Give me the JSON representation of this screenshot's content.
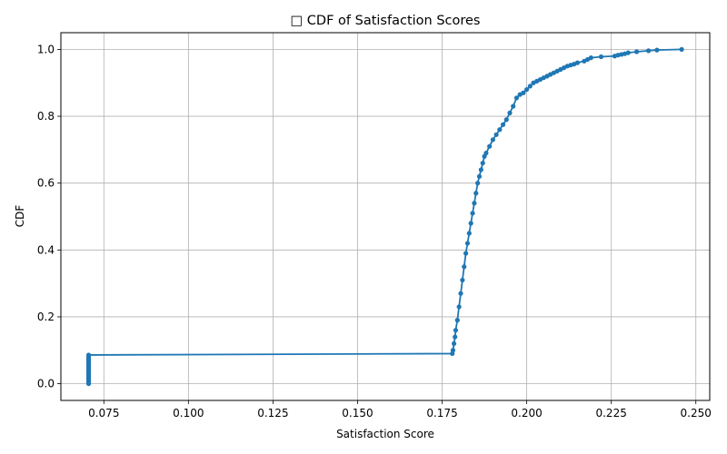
{
  "chart_data": {
    "type": "line",
    "title": "□ CDF of Satisfaction Scores",
    "xlabel": "Satisfaction Score",
    "ylabel": "CDF",
    "xlim": [
      0.0623,
      0.2541
    ],
    "ylim": [
      -0.05,
      1.05
    ],
    "grid": true,
    "line_color": "#1f77b4",
    "x_ticks": [
      0.075,
      0.1,
      0.125,
      0.15,
      0.175,
      0.2,
      0.225,
      0.25
    ],
    "x_tick_labels": [
      "0.075",
      "0.100",
      "0.125",
      "0.150",
      "0.175",
      "0.200",
      "0.225",
      "0.250"
    ],
    "y_ticks": [
      0.0,
      0.2,
      0.4,
      0.6,
      0.8,
      1.0
    ],
    "y_tick_labels": [
      "0.0",
      "0.2",
      "0.4",
      "0.6",
      "0.8",
      "1.0"
    ],
    "series": [
      {
        "x": [
          0.0705,
          0.0705,
          0.0705,
          0.0705,
          0.0705,
          0.0705,
          0.0705,
          0.0705,
          0.0705,
          0.0705,
          0.0705,
          0.0705,
          0.0705,
          0.0705,
          0.0705,
          0.0705,
          0.0705,
          0.0705,
          0.178,
          0.1782,
          0.1785,
          0.1788,
          0.179,
          0.1795,
          0.18,
          0.1805,
          0.181,
          0.1815,
          0.182,
          0.1825,
          0.183,
          0.1835,
          0.184,
          0.1845,
          0.185,
          0.1855,
          0.186,
          0.1865,
          0.187,
          0.1875,
          0.188,
          0.189,
          0.19,
          0.191,
          0.192,
          0.193,
          0.194,
          0.195,
          0.196,
          0.197,
          0.198,
          0.199,
          0.2,
          0.201,
          0.202,
          0.203,
          0.204,
          0.205,
          0.206,
          0.207,
          0.208,
          0.209,
          0.21,
          0.211,
          0.212,
          0.213,
          0.214,
          0.215,
          0.217,
          0.218,
          0.219,
          0.222,
          0.226,
          0.227,
          0.228,
          0.229,
          0.23,
          0.2325,
          0.236,
          0.2385,
          0.2458
        ],
        "y": [
          0.0,
          0.005,
          0.01,
          0.015,
          0.02,
          0.025,
          0.03,
          0.035,
          0.04,
          0.045,
          0.05,
          0.055,
          0.06,
          0.065,
          0.07,
          0.075,
          0.08,
          0.086,
          0.09,
          0.1,
          0.12,
          0.14,
          0.16,
          0.19,
          0.23,
          0.27,
          0.31,
          0.35,
          0.39,
          0.42,
          0.45,
          0.48,
          0.51,
          0.54,
          0.57,
          0.6,
          0.62,
          0.64,
          0.66,
          0.68,
          0.69,
          0.71,
          0.73,
          0.745,
          0.76,
          0.775,
          0.79,
          0.81,
          0.83,
          0.855,
          0.865,
          0.87,
          0.88,
          0.89,
          0.9,
          0.905,
          0.91,
          0.915,
          0.92,
          0.925,
          0.93,
          0.935,
          0.94,
          0.945,
          0.95,
          0.953,
          0.956,
          0.96,
          0.965,
          0.97,
          0.975,
          0.978,
          0.98,
          0.983,
          0.985,
          0.987,
          0.99,
          0.993,
          0.996,
          0.998,
          1.0
        ]
      }
    ]
  }
}
